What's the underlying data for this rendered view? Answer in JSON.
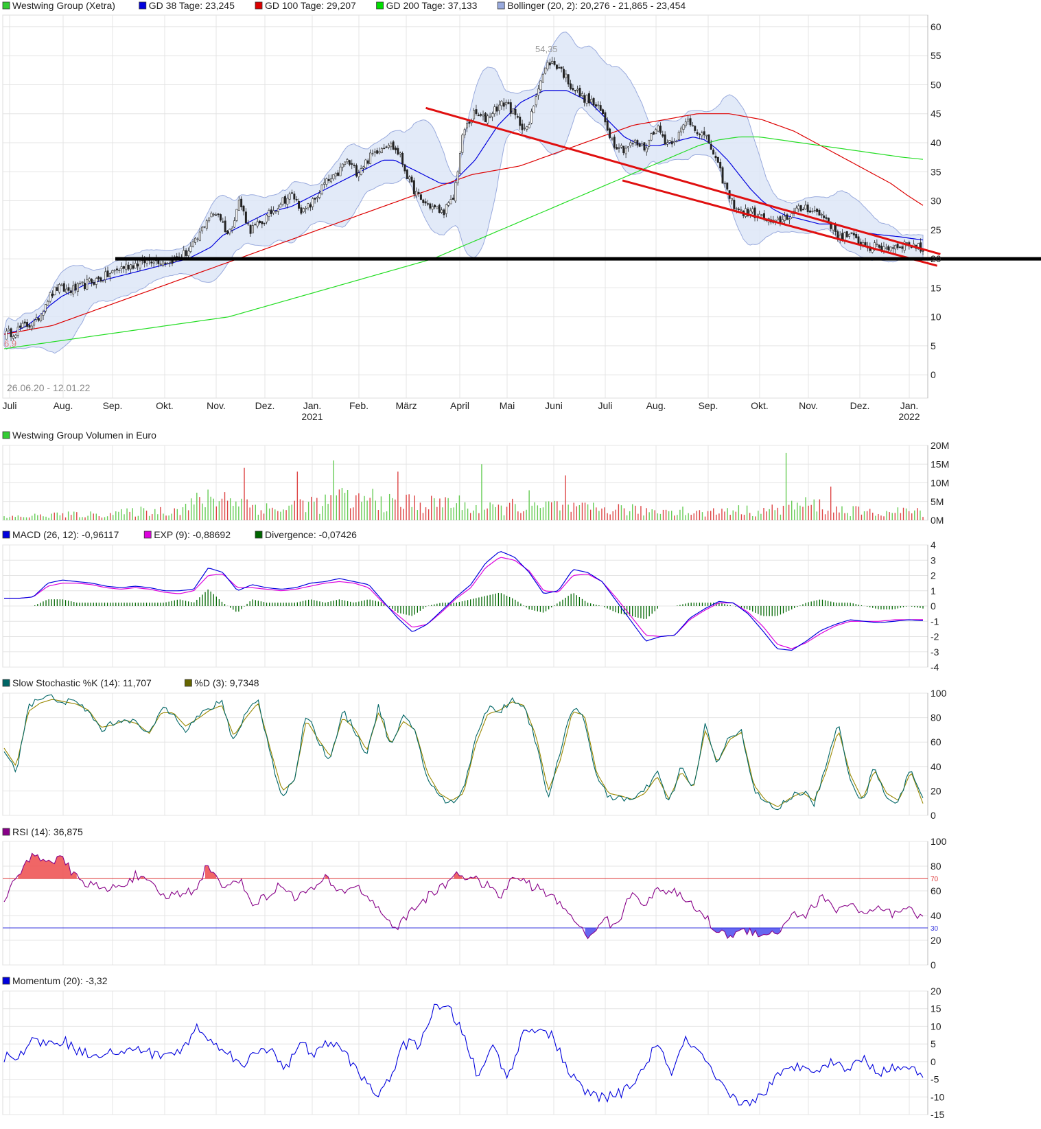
{
  "chart_data": [
    {
      "type": "candlestick",
      "legend": [
        {
          "label": "Westwing Group (Xetra)",
          "color": "#33cc33"
        },
        {
          "label": "GD 38 Tage: 23,245",
          "color": "#0000dd"
        },
        {
          "label": "GD 100 Tage: 29,207",
          "color": "#dd0000"
        },
        {
          "label": "GD 200 Tage: 37,133",
          "color": "#00dd00"
        },
        {
          "label": "Bollinger (20, 2): 20,276 - 21,865 - 23,454",
          "color": "#99aadd"
        }
      ],
      "y_ticks": [
        "0",
        "5",
        "10",
        "15",
        "20",
        "25",
        "30",
        "35",
        "40",
        "45",
        "50",
        "55",
        "60"
      ],
      "ylim": [
        -4,
        62
      ],
      "date_range_label": "26.06.20 - 12.01.22",
      "min_label": "6,9",
      "max_label": "54,35",
      "x_ticks": [
        {
          "label": "Juli",
          "sub": ""
        },
        {
          "label": "Aug.",
          "sub": ""
        },
        {
          "label": "Sep.",
          "sub": ""
        },
        {
          "label": "Okt.",
          "sub": ""
        },
        {
          "label": "Nov.",
          "sub": ""
        },
        {
          "label": "Dez.",
          "sub": ""
        },
        {
          "label": "Jan.",
          "sub": "2021"
        },
        {
          "label": "Feb.",
          "sub": ""
        },
        {
          "label": "März",
          "sub": ""
        },
        {
          "label": "April",
          "sub": ""
        },
        {
          "label": "Mai",
          "sub": ""
        },
        {
          "label": "Juni",
          "sub": ""
        },
        {
          "label": "Juli",
          "sub": ""
        },
        {
          "label": "Aug.",
          "sub": ""
        },
        {
          "label": "Sep.",
          "sub": ""
        },
        {
          "label": "Okt.",
          "sub": ""
        },
        {
          "label": "Nov.",
          "sub": ""
        },
        {
          "label": "Dez.",
          "sub": ""
        },
        {
          "label": "Jan.",
          "sub": "2022"
        }
      ],
      "price_anchors": [
        6.9,
        7.5,
        8.5,
        9,
        13,
        15,
        14.5,
        15,
        16,
        16.5,
        17.5,
        18.5,
        19,
        19.5,
        20,
        19.5,
        20,
        21,
        23,
        27,
        28,
        24,
        30,
        25,
        26,
        28,
        30,
        31,
        28,
        30,
        33,
        34,
        37,
        35,
        37,
        39,
        40,
        38,
        33,
        30,
        29,
        28,
        30,
        42,
        45,
        44,
        46,
        47,
        44,
        42,
        50,
        54,
        53,
        50,
        48,
        47,
        45,
        40,
        39,
        40,
        39,
        43,
        40,
        41,
        44,
        42,
        40,
        35,
        30,
        28,
        28,
        27,
        26,
        27,
        28,
        29,
        28,
        27,
        24,
        24,
        23,
        22,
        22,
        22,
        22.5,
        22.5,
        21.5
      ],
      "ma38_anchors": [
        7,
        7.5,
        8.5,
        10,
        12,
        13.5,
        14.5,
        15.5,
        16,
        16.5,
        17,
        17.5,
        18,
        18.5,
        19,
        19.5,
        20,
        21,
        22,
        24,
        25,
        26,
        27,
        28,
        28.5,
        29,
        30,
        31,
        32,
        33,
        34,
        35,
        36,
        37,
        37,
        36,
        35,
        34,
        33,
        33,
        35,
        37,
        40,
        43,
        45,
        47,
        48,
        49,
        49,
        49,
        48,
        47,
        45,
        43,
        41,
        40,
        39.5,
        39.5,
        40,
        40.5,
        41,
        40.5,
        39,
        37,
        34.5,
        32,
        30,
        28.5,
        27.5,
        27,
        26.5,
        26,
        26,
        25.5,
        25,
        24.5,
        24.2,
        24,
        23.8,
        23.5,
        23.245
      ],
      "ma100_anchors": [
        7,
        7.5,
        8,
        8.5,
        9.5,
        10.5,
        11.5,
        12.5,
        13.5,
        14.5,
        15.5,
        16.5,
        17.5,
        18.5,
        19.5,
        20.5,
        21.5,
        22.5,
        23.5,
        24.5,
        25.5,
        26.5,
        27.5,
        28.5,
        29.5,
        30.5,
        31.5,
        32.5,
        33.5,
        34.5,
        35,
        35.5,
        36,
        37,
        38,
        39,
        40,
        41,
        42,
        43,
        43.5,
        44,
        44.5,
        45,
        45,
        45,
        44.5,
        44,
        43,
        42,
        40.5,
        39,
        37.5,
        36,
        34.5,
        33,
        31,
        29.207
      ],
      "ma200_anchors": [
        4.5,
        5,
        5.5,
        6,
        6.5,
        7,
        7.5,
        8,
        8.5,
        9,
        9.5,
        10,
        11,
        12,
        13,
        14,
        15,
        16,
        17,
        18,
        19,
        20,
        21.5,
        23,
        24.5,
        26,
        27.5,
        29,
        30.5,
        32,
        33.5,
        35,
        36.5,
        38,
        39.5,
        40.5,
        41,
        41,
        40.5,
        40,
        39.5,
        39,
        38.5,
        38,
        37.5,
        37.133
      ],
      "trendlines": [
        {
          "from": [
            "2021-03-12",
            46.0
          ],
          "to": [
            "2022-01-20",
            20.8
          ]
        },
        {
          "from": [
            "2021-07-10",
            33.5
          ],
          "to": [
            "2022-01-18",
            18.8
          ]
        }
      ],
      "support_level": 20.0
    },
    {
      "type": "bar",
      "legend": [
        {
          "label": "Westwing Group Volumen in Euro",
          "color": "#33cc33"
        }
      ],
      "y_ticks": [
        "0M",
        "5M",
        "10M",
        "15M",
        "20M"
      ],
      "ylim": [
        0,
        20
      ],
      "volume_anchors": [
        0.8,
        1,
        1.2,
        1.5,
        1.5,
        1.5,
        1.8,
        2,
        2.5,
        2.5,
        3,
        5,
        6,
        6,
        4,
        3,
        3,
        5,
        4,
        6,
        5,
        6,
        4,
        5,
        4,
        5,
        4,
        3,
        3,
        4,
        3,
        4,
        3,
        3,
        3,
        3,
        2.5,
        2.5,
        3,
        2,
        2,
        3,
        2.5,
        2.5,
        3,
        4,
        4,
        3,
        2.5,
        2,
        2,
        2.5,
        2
      ],
      "spike_anchors": [
        [
          0.26,
          14
        ],
        [
          0.32,
          13
        ],
        [
          0.36,
          16
        ],
        [
          0.43,
          13
        ],
        [
          0.52,
          15
        ],
        [
          0.57,
          8
        ],
        [
          0.61,
          12
        ],
        [
          0.85,
          18
        ],
        [
          0.9,
          9
        ]
      ]
    },
    {
      "type": "line",
      "legend": [
        {
          "label": "MACD (26, 12): -0,96117",
          "color": "#0000dd"
        },
        {
          "label": "EXP (9): -0,88692",
          "color": "#dd00dd"
        },
        {
          "label": "Divergence: -0,07426",
          "color": "#006600"
        }
      ],
      "y_ticks": [
        "4",
        "3",
        "2",
        "1",
        "0",
        "-1",
        "-2",
        "-3",
        "-4"
      ],
      "ylim": [
        -4,
        4
      ],
      "macd_anchors": [
        0.5,
        0.5,
        0.6,
        1.5,
        1.7,
        1.6,
        1.5,
        1.3,
        1.2,
        1.3,
        1.2,
        1.0,
        1.0,
        1.1,
        2.5,
        2.2,
        1.0,
        1.4,
        1.2,
        1.1,
        1.2,
        1.5,
        1.6,
        1.8,
        1.6,
        1.4,
        0.3,
        -0.8,
        -1.7,
        -1.2,
        -0.3,
        0.6,
        1.4,
        2.8,
        3.6,
        3.2,
        2.2,
        0.8,
        1.0,
        2.4,
        2.2,
        1.6,
        0.3,
        -1.0,
        -2.3,
        -2.0,
        -1.9,
        -0.8,
        -0.2,
        0.3,
        0.2,
        -0.5,
        -1.6,
        -2.8,
        -2.9,
        -2.3,
        -1.6,
        -1.2,
        -0.9,
        -1.0,
        -1.1,
        -1.0,
        -0.9,
        -0.96117
      ],
      "signal_anchors": [
        0.5,
        0.5,
        0.6,
        1.3,
        1.5,
        1.5,
        1.4,
        1.2,
        1.1,
        1.2,
        1.1,
        0.9,
        0.8,
        1.0,
        2.0,
        2.1,
        1.2,
        1.2,
        1.1,
        1.0,
        1.1,
        1.3,
        1.5,
        1.6,
        1.5,
        1.2,
        0.2,
        -0.6,
        -1.4,
        -1.2,
        -0.4,
        0.5,
        1.2,
        2.5,
        3.2,
        3.0,
        2.3,
        1.0,
        0.9,
        2.0,
        2.1,
        1.6,
        0.5,
        -0.7,
        -1.9,
        -2.0,
        -1.9,
        -0.9,
        -0.3,
        0.2,
        0.2,
        -0.4,
        -1.3,
        -2.5,
        -2.8,
        -2.4,
        -1.8,
        -1.3,
        -1.0,
        -1.0,
        -1.0,
        -0.9,
        -0.9,
        -0.88692
      ]
    },
    {
      "type": "line",
      "legend": [
        {
          "label": "Slow Stochastic %K (14): 11,707",
          "color": "#006666"
        },
        {
          "label": "%D (3): 9,7348",
          "color": "#666600"
        }
      ],
      "y_ticks": [
        "0",
        "20",
        "40",
        "60",
        "80",
        "100"
      ],
      "ylim": [
        0,
        100
      ],
      "k_anchors": [
        55,
        35,
        90,
        95,
        97,
        93,
        92,
        85,
        70,
        75,
        80,
        75,
        65,
        88,
        85,
        70,
        80,
        88,
        92,
        60,
        85,
        95,
        50,
        15,
        30,
        85,
        60,
        45,
        85,
        70,
        50,
        90,
        55,
        80,
        70,
        30,
        15,
        10,
        20,
        65,
        88,
        85,
        95,
        90,
        60,
        15,
        50,
        90,
        80,
        30,
        15,
        15,
        12,
        20,
        35,
        10,
        40,
        20,
        75,
        40,
        65,
        70,
        20,
        10,
        5,
        15,
        20,
        10,
        40,
        75,
        30,
        10,
        40,
        15,
        10,
        40,
        11.707
      ],
      "d_anchors": [
        55,
        40,
        85,
        92,
        95,
        93,
        91,
        86,
        72,
        74,
        78,
        75,
        67,
        84,
        84,
        73,
        79,
        86,
        90,
        65,
        80,
        92,
        55,
        20,
        28,
        78,
        62,
        48,
        80,
        71,
        53,
        85,
        58,
        77,
        70,
        35,
        18,
        12,
        18,
        58,
        83,
        86,
        93,
        90,
        65,
        20,
        45,
        85,
        82,
        35,
        18,
        16,
        13,
        18,
        32,
        13,
        36,
        22,
        70,
        43,
        62,
        68,
        25,
        12,
        7,
        14,
        19,
        12,
        36,
        70,
        33,
        13,
        37,
        18,
        12,
        36,
        9.7348
      ],
      "threshold_lines": [
        20,
        80
      ]
    },
    {
      "type": "line",
      "legend": [
        {
          "label": "RSI (14): 36,875",
          "color": "#880088"
        }
      ],
      "y_ticks": [
        "0",
        "20",
        "40",
        "60",
        "80",
        "100"
      ],
      "ylim": [
        0,
        100
      ],
      "overbought": {
        "value": 70,
        "label": "70",
        "color": "#dd3333"
      },
      "oversold": {
        "value": 30,
        "label": "30",
        "color": "#3333dd"
      },
      "rsi_anchors": [
        55,
        72,
        90,
        85,
        85,
        70,
        65,
        60,
        65,
        72,
        65,
        55,
        58,
        60,
        82,
        60,
        72,
        50,
        55,
        65,
        55,
        60,
        70,
        58,
        65,
        55,
        40,
        30,
        45,
        55,
        62,
        75,
        70,
        65,
        55,
        72,
        65,
        60,
        50,
        40,
        20,
        38,
        30,
        60,
        50,
        62,
        58,
        50,
        40,
        25,
        25,
        28,
        26,
        25,
        42,
        40,
        55,
        45,
        50,
        40,
        45,
        40,
        45,
        36.875
      ]
    },
    {
      "type": "line",
      "legend": [
        {
          "label": "Momentum (20): -3,32",
          "color": "#0000dd"
        }
      ],
      "y_ticks": [
        "20",
        "15",
        "10",
        "5",
        "0",
        "-5",
        "-10",
        "-15"
      ],
      "ylim": [
        -15,
        20
      ],
      "momentum_anchors": [
        1,
        2,
        6,
        5,
        6,
        3,
        2,
        3,
        2,
        4,
        2,
        2,
        3,
        10,
        5,
        4,
        -2,
        3,
        4,
        -2,
        5,
        2,
        6,
        2,
        -3,
        -10,
        -5,
        5,
        5,
        15,
        15,
        8,
        -5,
        5,
        -5,
        8,
        10,
        7,
        -2,
        -8,
        -10,
        -10,
        -8,
        -3,
        5,
        -3,
        6,
        2,
        -5,
        -10,
        -12,
        -10,
        -5,
        -2,
        -1,
        -2,
        0,
        -2,
        1,
        -3,
        -2,
        -1,
        -3.32
      ]
    }
  ]
}
